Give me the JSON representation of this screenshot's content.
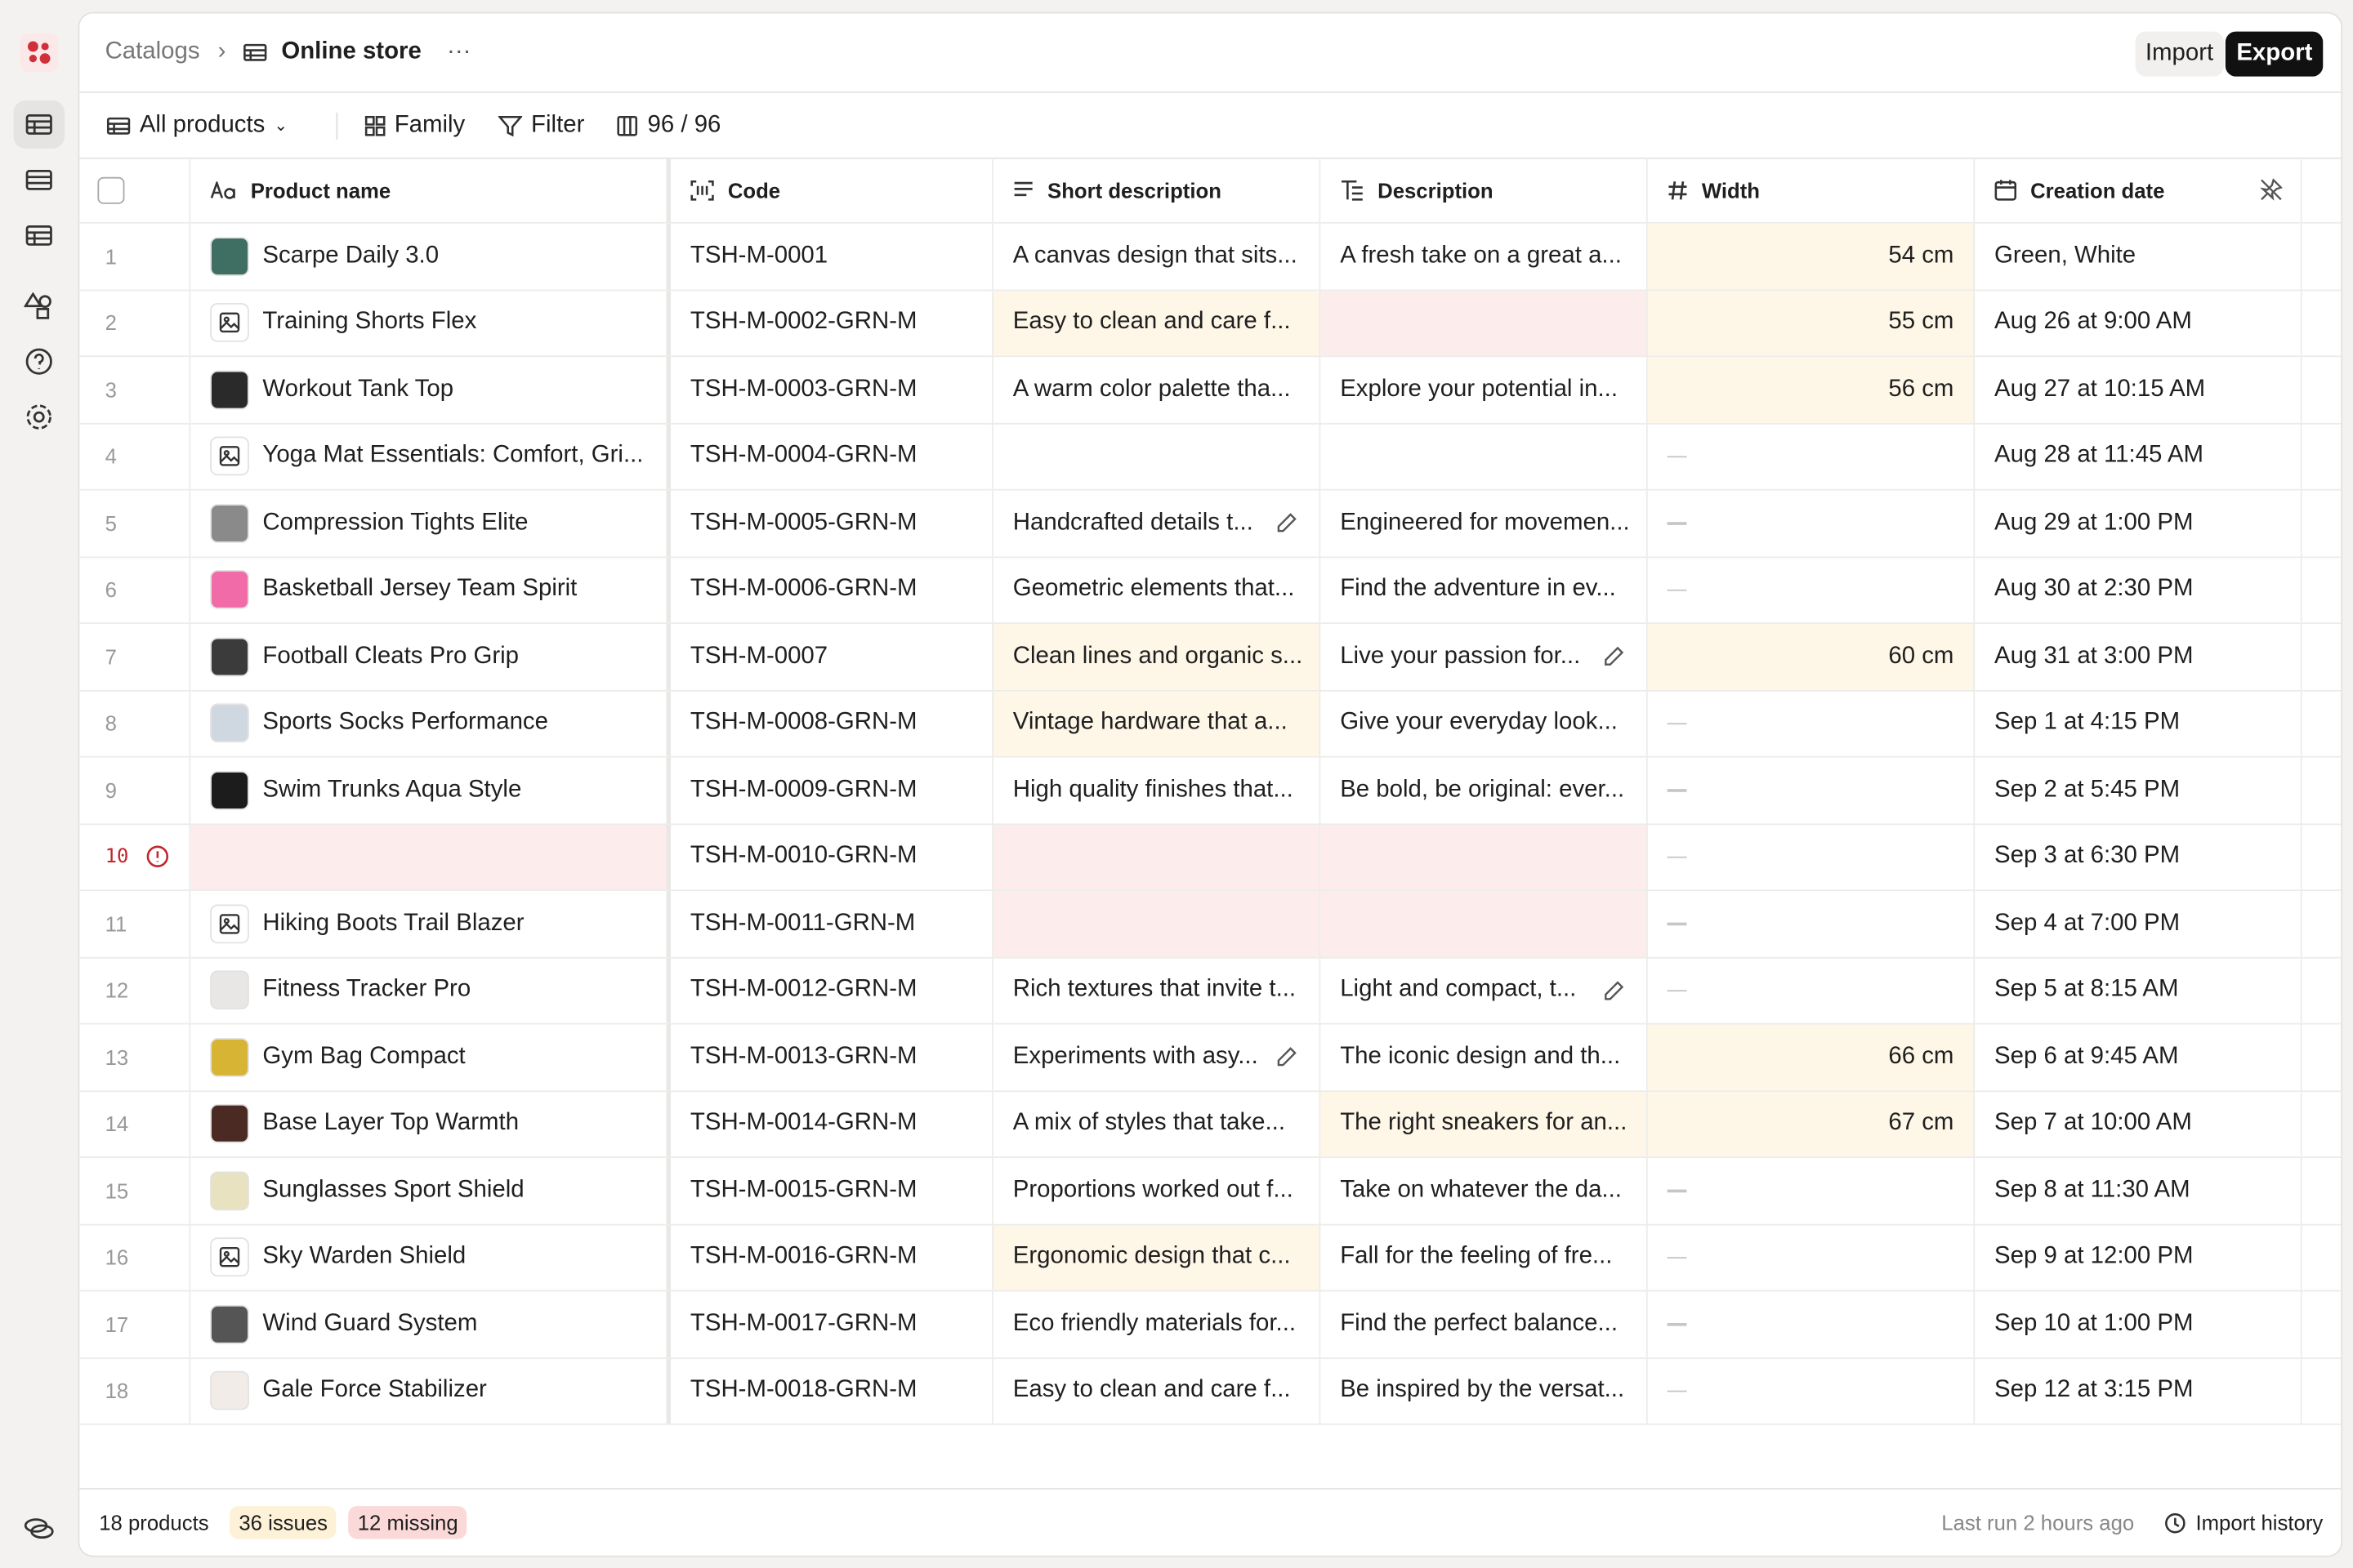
{
  "header": {
    "breadcrumb": "Catalogs",
    "title": "Online store",
    "import": "Import",
    "export": "Export"
  },
  "toolbar": {
    "view": "All products",
    "family": "Family",
    "filter": "Filter",
    "count": "96 / 96"
  },
  "table": {
    "columns": [
      "Product name",
      "Code",
      "Short description",
      "Description",
      "Width",
      "Creation date"
    ],
    "rows": [
      {
        "no": "1",
        "name": "Scarpe Daily 3.0",
        "thumb": "#3f6e62",
        "code": "TSH-M-0001",
        "short": "A canvas design that sits...",
        "description": "A fresh take on a great a...",
        "width": "54 cm",
        "created": "Green, White",
        "warn": [
          "width"
        ]
      },
      {
        "no": "2",
        "name": "Training Shorts Flex",
        "thumb": "placeholder",
        "code": "TSH-M-0002-GRN-M",
        "short": "Easy to clean and care f...",
        "description": "",
        "width": "55 cm",
        "created": "Aug 26 at 9:00 AM",
        "warn": [
          "short",
          "width"
        ],
        "missing": [
          "description"
        ]
      },
      {
        "no": "3",
        "name": "Workout Tank Top",
        "thumb": "#2a2a2a",
        "code": "TSH-M-0003-GRN-M",
        "short": "A warm color palette tha...",
        "description": "Explore your potential in...",
        "width": "56 cm",
        "created": "Aug 27 at 10:15 AM",
        "warn": [
          "width"
        ]
      },
      {
        "no": "4",
        "name": "Yoga Mat Essentials: Comfort, Gri...",
        "thumb": "placeholder",
        "code": "TSH-M-0004-GRN-M",
        "short": "",
        "description": "",
        "width": null,
        "created": "Aug 28 at 11:45 AM"
      },
      {
        "no": "5",
        "name": "Compression Tights Elite",
        "thumb": "#8a8a8a",
        "code": "TSH-M-0005-GRN-M",
        "short": "Handcrafted details t...",
        "description": "Engineered for movemen...",
        "width": null,
        "created": "Aug 29 at 1:00 PM",
        "edit": "short"
      },
      {
        "no": "6",
        "name": "Basketball Jersey Team Spirit",
        "thumb": "#f06ba8",
        "code": "TSH-M-0006-GRN-M",
        "short": "Geometric elements that...",
        "description": "Find the adventure in ev...",
        "width": null,
        "created": "Aug 30 at 2:30 PM"
      },
      {
        "no": "7",
        "name": "Football Cleats Pro Grip",
        "thumb": "#3b3b3b",
        "code": "TSH-M-0007",
        "short": "Clean lines and organic s...",
        "description": "Live your passion for...",
        "width": "60 cm",
        "created": "Aug 31 at 3:00 PM",
        "warn": [
          "short",
          "width"
        ],
        "edit": "description"
      },
      {
        "no": "8",
        "name": "Sports Socks Performance",
        "thumb": "#cfd8e0",
        "code": "TSH-M-0008-GRN-M",
        "short": "Vintage hardware that a...",
        "description": "Give your everyday look...",
        "width": null,
        "created": "Sep 1 at 4:15 PM",
        "warn": [
          "short"
        ]
      },
      {
        "no": "9",
        "name": "Swim Trunks Aqua Style",
        "thumb": "#1c1c1c",
        "code": "TSH-M-0009-GRN-M",
        "short": "High quality finishes that...",
        "description": "Be bold, be original: ever...",
        "width": null,
        "created": "Sep 2 at 5:45 PM"
      },
      {
        "no": "10",
        "name": "",
        "thumb": "none",
        "code": "TSH-M-0010-GRN-M",
        "short": "",
        "description": "",
        "width": null,
        "created": "Sep 3 at 6:30 PM",
        "missing": [
          "name",
          "short",
          "description"
        ],
        "error": true
      },
      {
        "no": "11",
        "name": "Hiking Boots Trail Blazer",
        "thumb": "placeholder",
        "code": "TSH-M-0011-GRN-M",
        "short": "",
        "description": "",
        "width": null,
        "created": "Sep 4 at 7:00 PM",
        "missing": [
          "short",
          "description"
        ]
      },
      {
        "no": "12",
        "name": "Fitness Tracker Pro",
        "thumb": "#e9e6e6",
        "code": "TSH-M-0012-GRN-M",
        "short": "Rich textures that invite t...",
        "description": "Light and compact, t...",
        "width": null,
        "created": "Sep 5 at 8:15 AM",
        "edit": "description"
      },
      {
        "no": "13",
        "name": "Gym Bag Compact",
        "thumb": "#d8b434",
        "code": "TSH-M-0013-GRN-M",
        "short": "Experiments with asy...",
        "description": "The iconic design and th...",
        "width": "66 cm",
        "created": "Sep 6 at 9:45 AM",
        "warn": [
          "width"
        ],
        "edit": "short"
      },
      {
        "no": "14",
        "name": "Base Layer Top Warmth",
        "thumb": "#4a2a22",
        "code": "TSH-M-0014-GRN-M",
        "short": "A mix of styles that take...",
        "description": "The right sneakers for an...",
        "width": "67 cm",
        "created": "Sep 7 at 10:00 AM",
        "warn": [
          "description",
          "width"
        ]
      },
      {
        "no": "15",
        "name": "Sunglasses Sport Shield",
        "thumb": "#e8e2c0",
        "code": "TSH-M-0015-GRN-M",
        "short": "Proportions worked out f...",
        "description": "Take on whatever the da...",
        "width": null,
        "created": "Sep 8 at 11:30 AM"
      },
      {
        "no": "16",
        "name": "Sky Warden Shield",
        "thumb": "placeholder",
        "code": "TSH-M-0016-GRN-M",
        "short": "Ergonomic design that c...",
        "description": "Fall for the feeling of fre...",
        "width": null,
        "created": "Sep 9 at 12:00 PM",
        "warn": [
          "short"
        ]
      },
      {
        "no": "17",
        "name": "Wind Guard System",
        "thumb": "#555555",
        "code": "TSH-M-0017-GRN-M",
        "short": "Eco friendly materials for...",
        "description": "Find the perfect balance...",
        "width": null,
        "created": "Sep 10 at 1:00 PM"
      },
      {
        "no": "18",
        "name": "Gale Force Stabilizer",
        "thumb": "#f2ece9",
        "code": "TSH-M-0018-GRN-M",
        "short": "Easy to clean and care f...",
        "description": "Be inspired by the versat...",
        "width": null,
        "created": "Sep 12 at 3:15 PM"
      }
    ]
  },
  "footer": {
    "products": "18 products",
    "issues": "36 issues",
    "missing": "12 missing",
    "last_run": "Last run 2 hours ago",
    "history": "Import history"
  }
}
